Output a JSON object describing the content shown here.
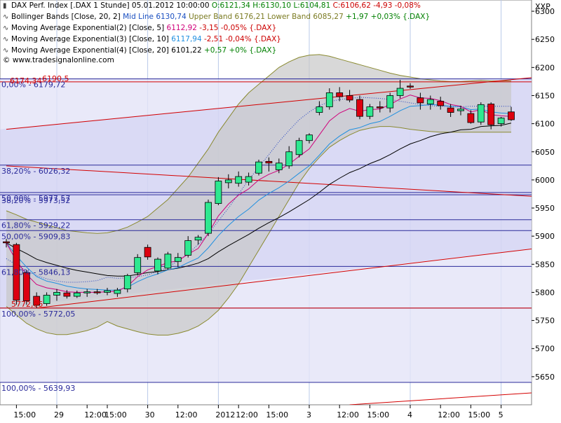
{
  "chart_data": {
    "type": "candlestick",
    "instrument": "DAX Perf. Index [.DAX 1 Stunde]",
    "ylim": [
      5600,
      6320
    ],
    "y_ticks": [
      5650,
      5700,
      5750,
      5800,
      5850,
      5900,
      5950,
      6000,
      6050,
      6100,
      6150,
      6200,
      6250,
      6300
    ],
    "y_unit_label": "XXP",
    "x_ticks": [
      "15:00",
      "29",
      "12:00",
      "15:00",
      "30",
      "12:00",
      "2012",
      "12:00",
      "15:00",
      "3",
      "12:00",
      "15:00",
      "4",
      "12:00",
      "15:00",
      "5"
    ],
    "legend": {
      "ohlc": {
        "name": "DAX Perf. Index [.DAX 1 Stunde] 05.01.2012 10:00:00",
        "values": "O:6121,34 H:6130,10 L:6104,81",
        "close": "C:6106,62 -4,93 -0,08%"
      },
      "bollinger": {
        "name": "Bollinger Bands [Close, 20, 2]",
        "mid": "Mid Line 6130,74",
        "upper_lower": "Upper Band 6176,21 Lower Band 6085,27",
        "change": "+1,97 +0,03% {.DAX}"
      },
      "ema5": {
        "name": "Moving Average Exponential(2) [Close, 5]",
        "value": "6112,92",
        "change": "-3,15 -0,05% {.DAX}"
      },
      "ema10": {
        "name": "Moving Average Exponential(3) [Close, 10]",
        "value": "6117,94",
        "change": "-2,51 -0,04% {.DAX}"
      },
      "ema20": {
        "name": "Moving Average Exponential(4) [Close, 20]",
        "value": "6101,22",
        "change": "+0,57 +0% {.DAX}"
      },
      "copyright": "© www.tradesignalonline.com"
    },
    "candles": [
      {
        "o": 5890,
        "h": 5895,
        "l": 5880,
        "c": 5888
      },
      {
        "o": 5885,
        "h": 5888,
        "l": 5778,
        "c": 5786
      },
      {
        "o": 5835,
        "h": 5840,
        "l": 5778,
        "c": 5785
      },
      {
        "o": 5793,
        "h": 5800,
        "l": 5772,
        "c": 5777
      },
      {
        "o": 5780,
        "h": 5800,
        "l": 5776,
        "c": 5795
      },
      {
        "o": 5795,
        "h": 5806,
        "l": 5785,
        "c": 5800
      },
      {
        "o": 5799,
        "h": 5804,
        "l": 5789,
        "c": 5793
      },
      {
        "o": 5793,
        "h": 5803,
        "l": 5790,
        "c": 5799
      },
      {
        "o": 5799,
        "h": 5806,
        "l": 5792,
        "c": 5801
      },
      {
        "o": 5801,
        "h": 5806,
        "l": 5796,
        "c": 5800
      },
      {
        "o": 5800,
        "h": 5808,
        "l": 5795,
        "c": 5803
      },
      {
        "o": 5798,
        "h": 5808,
        "l": 5792,
        "c": 5804
      },
      {
        "o": 5806,
        "h": 5833,
        "l": 5800,
        "c": 5830
      },
      {
        "o": 5835,
        "h": 5868,
        "l": 5830,
        "c": 5862
      },
      {
        "o": 5880,
        "h": 5885,
        "l": 5858,
        "c": 5863
      },
      {
        "o": 5838,
        "h": 5862,
        "l": 5832,
        "c": 5859
      },
      {
        "o": 5843,
        "h": 5872,
        "l": 5840,
        "c": 5868
      },
      {
        "o": 5855,
        "h": 5870,
        "l": 5845,
        "c": 5862
      },
      {
        "o": 5866,
        "h": 5900,
        "l": 5862,
        "c": 5892
      },
      {
        "o": 5893,
        "h": 5902,
        "l": 5885,
        "c": 5898
      },
      {
        "o": 5905,
        "h": 5965,
        "l": 5900,
        "c": 5960
      },
      {
        "o": 5958,
        "h": 6005,
        "l": 5955,
        "c": 5998
      },
      {
        "o": 5995,
        "h": 6010,
        "l": 5985,
        "c": 6000
      },
      {
        "o": 5994,
        "h": 6015,
        "l": 5988,
        "c": 6006
      },
      {
        "o": 5996,
        "h": 6013,
        "l": 5990,
        "c": 6006
      },
      {
        "o": 6012,
        "h": 6036,
        "l": 6008,
        "c": 6032
      },
      {
        "o": 6033,
        "h": 6040,
        "l": 6015,
        "c": 6030
      },
      {
        "o": 6018,
        "h": 6038,
        "l": 6012,
        "c": 6030
      },
      {
        "o": 6025,
        "h": 6060,
        "l": 6020,
        "c": 6050
      },
      {
        "o": 6045,
        "h": 6075,
        "l": 6040,
        "c": 6070
      },
      {
        "o": 6070,
        "h": 6083,
        "l": 6065,
        "c": 6080
      },
      {
        "o": 6120,
        "h": 6140,
        "l": 6115,
        "c": 6130
      },
      {
        "o": 6130,
        "h": 6163,
        "l": 6125,
        "c": 6155
      },
      {
        "o": 6155,
        "h": 6165,
        "l": 6140,
        "c": 6148
      },
      {
        "o": 6150,
        "h": 6160,
        "l": 6138,
        "c": 6142
      },
      {
        "o": 6143,
        "h": 6150,
        "l": 6108,
        "c": 6113
      },
      {
        "o": 6113,
        "h": 6135,
        "l": 6108,
        "c": 6130
      },
      {
        "o": 6130,
        "h": 6140,
        "l": 6120,
        "c": 6128
      },
      {
        "o": 6128,
        "h": 6155,
        "l": 6120,
        "c": 6150
      },
      {
        "o": 6150,
        "h": 6178,
        "l": 6145,
        "c": 6163
      },
      {
        "o": 6167,
        "h": 6172,
        "l": 6162,
        "c": 6166
      },
      {
        "o": 6146,
        "h": 6155,
        "l": 6125,
        "c": 6137
      },
      {
        "o": 6135,
        "h": 6150,
        "l": 6125,
        "c": 6143
      },
      {
        "o": 6140,
        "h": 6148,
        "l": 6125,
        "c": 6132
      },
      {
        "o": 6128,
        "h": 6135,
        "l": 6112,
        "c": 6120
      },
      {
        "o": 6123,
        "h": 6132,
        "l": 6115,
        "c": 6126
      },
      {
        "o": 6118,
        "h": 6124,
        "l": 6100,
        "c": 6102
      },
      {
        "o": 6103,
        "h": 6138,
        "l": 6098,
        "c": 6134
      },
      {
        "o": 6135,
        "h": 6138,
        "l": 6090,
        "c": 6098
      },
      {
        "o": 6100,
        "h": 6112,
        "l": 6095,
        "c": 6110
      },
      {
        "o": 6121,
        "h": 6130,
        "l": 6105,
        "c": 6107
      }
    ],
    "bollinger_upper": [
      5945,
      5938,
      5930,
      5925,
      5920,
      5915,
      5910,
      5908,
      5906,
      5905,
      5906,
      5910,
      5916,
      5925,
      5935,
      5950,
      5965,
      5985,
      6005,
      6030,
      6055,
      6085,
      6110,
      6135,
      6155,
      6170,
      6185,
      6200,
      6210,
      6218,
      6222,
      6223,
      6220,
      6215,
      6210,
      6205,
      6200,
      6195,
      6190,
      6186,
      6183,
      6180,
      6178,
      6176,
      6175,
      6175,
      6176,
      6177,
      6176,
      6176,
      6176
    ],
    "bollinger_lower": [
      5775,
      5760,
      5745,
      5735,
      5728,
      5725,
      5725,
      5728,
      5732,
      5738,
      5748,
      5740,
      5735,
      5730,
      5726,
      5724,
      5724,
      5727,
      5732,
      5740,
      5752,
      5768,
      5790,
      5815,
      5845,
      5875,
      5905,
      5935,
      5965,
      5995,
      6020,
      6040,
      6058,
      6070,
      6080,
      6088,
      6092,
      6095,
      6095,
      6093,
      6090,
      6088,
      6086,
      6085,
      6085,
      6085,
      6085,
      6085,
      6085,
      6085,
      6085
    ],
    "bollinger_mid": [
      5860,
      5849,
      5838,
      5830,
      5824,
      5820,
      5818,
      5818,
      5819,
      5821,
      5827,
      5825,
      5826,
      5828,
      5831,
      5837,
      5845,
      5856,
      5869,
      5885,
      5904,
      5927,
      5950,
      5975,
      6000,
      6023,
      6045,
      6068,
      6088,
      6107,
      6121,
      6132,
      6139,
      6143,
      6145,
      6147,
      6146,
      6145,
      6143,
      6140,
      6137,
      6134,
      6132,
      6131,
      6130,
      6130,
      6131,
      6131,
      6131,
      6131,
      6131
    ],
    "ema5": [
      5888,
      5856,
      5832,
      5814,
      5808,
      5805,
      5801,
      5800,
      5800,
      5800,
      5801,
      5802,
      5811,
      5828,
      5840,
      5846,
      5853,
      5856,
      5868,
      5878,
      5905,
      5936,
      5957,
      5973,
      5984,
      6000,
      6010,
      6017,
      6028,
      6042,
      6055,
      6080,
      6105,
      6119,
      6127,
      6122,
      6125,
      6126,
      6134,
      6144,
      6151,
      6146,
      6145,
      6141,
      6134,
      6131,
      6121,
      6125,
      6116,
      6114,
      6113
    ],
    "ema10": [
      5888,
      5865,
      5845,
      5828,
      5820,
      5816,
      5811,
      5808,
      5806,
      5805,
      5804,
      5804,
      5809,
      5819,
      5827,
      5833,
      5840,
      5844,
      5853,
      5861,
      5879,
      5901,
      5919,
      5935,
      5948,
      5964,
      5976,
      5986,
      5998,
      6012,
      6025,
      6044,
      6064,
      6078,
      6089,
      6093,
      6100,
      6104,
      6113,
      6123,
      6131,
      6132,
      6134,
      6133,
      6131,
      6130,
      6125,
      6126,
      6121,
      6119,
      6118
    ],
    "ema20": [
      5888,
      5878,
      5869,
      5859,
      5853,
      5848,
      5843,
      5839,
      5836,
      5833,
      5830,
      5829,
      5829,
      5832,
      5835,
      5837,
      5840,
      5843,
      5847,
      5852,
      5860,
      5872,
      5883,
      5893,
      5903,
      5914,
      5924,
      5933,
      5943,
      5954,
      5965,
      5978,
      5992,
      6003,
      6013,
      6020,
      6029,
      6036,
      6045,
      6055,
      6064,
      6070,
      6077,
      6082,
      6085,
      6089,
      6090,
      6095,
      6096,
      6097,
      6101
    ],
    "fib_levels": [
      {
        "label": "0,00% - 6179,72",
        "value": 6179.72,
        "color": "#3030a0"
      },
      {
        "label": "6174,34",
        "value": 6174.34,
        "color": "#cc0000"
      },
      {
        "label": "38,20% - 6026,32",
        "value": 6026.32,
        "color": "#3030a0"
      },
      {
        "label": "50,00% - 5977,57",
        "value": 5977.57,
        "color": "#3030a0"
      },
      {
        "label": "38,20% - 5973,52",
        "value": 5973.52,
        "color": "#3030a0"
      },
      {
        "label": "61,80% - 5929,22",
        "value": 5929.22,
        "color": "#3030a0"
      },
      {
        "label": "50,00% - 5909,83",
        "value": 5909.83,
        "color": "#3030a0"
      },
      {
        "label": "61,80% - 5846,13",
        "value": 5846.13,
        "color": "#3030a0"
      },
      {
        "label": "100,00% - 5772,05",
        "value": 5772.05,
        "color": "#3030a0"
      },
      {
        "label": "5772,05",
        "value": 5772.05,
        "color": "#cc0000"
      },
      {
        "label": "100,00% - 5639,93",
        "value": 5639.93,
        "color": "#3030a0"
      }
    ],
    "trend_lines": [
      {
        "from": [
          0,
          6090
        ],
        "to": [
          51,
          6180
        ]
      },
      {
        "from": [
          0,
          6025
        ],
        "to": [
          51,
          5972
        ]
      },
      {
        "from": [
          3,
          5772
        ],
        "to": [
          51,
          5875
        ]
      },
      {
        "from": [
          34,
          5600
        ],
        "to": [
          51,
          5620
        ]
      }
    ],
    "top_label": "6190,5",
    "colors": {
      "up": "#2ee890",
      "down": "#dd0010",
      "bb_fill": "#c8c8c8",
      "bb_line": "#8a8a30",
      "ema5": "#d0007a",
      "ema10": "#2090e0",
      "ema20": "#000000",
      "fib": "#2a2a9a",
      "trend": "#d40000"
    }
  }
}
